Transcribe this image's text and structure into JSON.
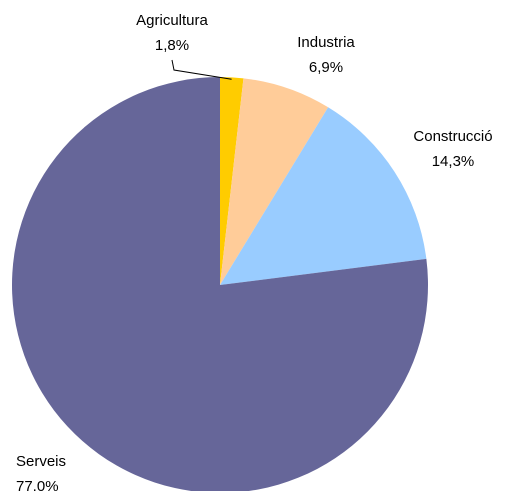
{
  "chart_data": {
    "type": "pie",
    "title": "",
    "labels": [
      "Agricultura",
      "Industria",
      "Construcció",
      "Serveis"
    ],
    "values": [
      1.8,
      6.9,
      14.3,
      77.0
    ],
    "value_labels": [
      "1,8%",
      "6,9%",
      "14,3%",
      "77,0%"
    ],
    "colors": [
      "#FFCC00",
      "#FFCC99",
      "#99CCFF",
      "#666699"
    ],
    "start_angle": "12 o'clock",
    "direction": "clockwise",
    "legend": "none"
  }
}
